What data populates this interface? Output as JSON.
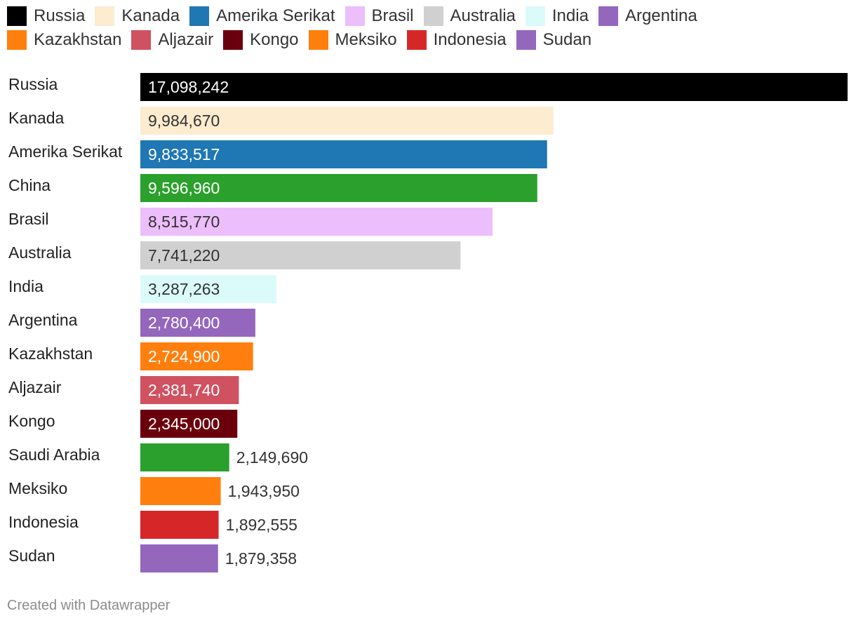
{
  "legend": {
    "rows": [
      [
        {
          "label": "Russia",
          "color": "#000000"
        },
        {
          "label": "Kanada",
          "color": "#fdeccf"
        },
        {
          "label": "Amerika Serikat",
          "color": "#1f77b4"
        },
        {
          "label": "Brasil",
          "color": "#ecbefc"
        },
        {
          "label": "Australia",
          "color": "#d0d0d0"
        },
        {
          "label": "India",
          "color": "#dbfbfb"
        },
        {
          "label": "Argentina",
          "color": "#9467bd"
        }
      ],
      [
        {
          "label": "Kazakhstan",
          "color": "#ff7f0e"
        },
        {
          "label": "Aljazair",
          "color": "#d05261"
        },
        {
          "label": "Kongo",
          "color": "#6b000d"
        },
        {
          "label": "Meksiko",
          "color": "#ff7f0e"
        },
        {
          "label": "Indonesia",
          "color": "#d62728"
        },
        {
          "label": "Sudan",
          "color": "#9467bd"
        }
      ]
    ]
  },
  "chart_data": {
    "type": "bar",
    "orientation": "horizontal",
    "grid": false,
    "xlim": [
      0,
      17098242
    ],
    "categories": [
      "Russia",
      "Kanada",
      "Amerika Serikat",
      "China",
      "Brasil",
      "Australia",
      "India",
      "Argentina",
      "Kazakhstan",
      "Aljazair",
      "Kongo",
      "Saudi Arabia",
      "Meksiko",
      "Indonesia",
      "Sudan"
    ],
    "values": [
      17098242,
      9984670,
      9833517,
      9596960,
      8515770,
      7741220,
      3287263,
      2780400,
      2724900,
      2381740,
      2345000,
      2149690,
      1943950,
      1892555,
      1879358
    ],
    "value_labels": [
      "17,098,242",
      "9,984,670",
      "9,833,517",
      "9,596,960",
      "8,515,770",
      "7,741,220",
      "3,287,263",
      "2,780,400",
      "2,724,900",
      "2,381,740",
      "2,345,000",
      "2,149,690",
      "1,943,950",
      "1,892,555",
      "1,879,358"
    ],
    "colors": [
      "#000000",
      "#fdeccf",
      "#1f77b4",
      "#2ca02c",
      "#ecbefc",
      "#d0d0d0",
      "#dbfbfb",
      "#9467bd",
      "#ff7f0e",
      "#d05261",
      "#6b000d",
      "#2ca02c",
      "#ff7f0e",
      "#d62728",
      "#9467bd"
    ],
    "label_colors": [
      "#ffffff",
      "#333333",
      "#ffffff",
      "#ffffff",
      "#333333",
      "#333333",
      "#333333",
      "#ffffff",
      "#ffffff",
      "#ffffff",
      "#ffffff",
      "#333333",
      "#333333",
      "#333333",
      "#333333"
    ],
    "label_placement": [
      "inside",
      "inside",
      "inside",
      "inside",
      "inside",
      "inside",
      "inside",
      "inside",
      "inside",
      "inside",
      "inside",
      "outside",
      "outside",
      "outside",
      "outside"
    ]
  },
  "footer": {
    "credit": "Created with Datawrapper"
  }
}
